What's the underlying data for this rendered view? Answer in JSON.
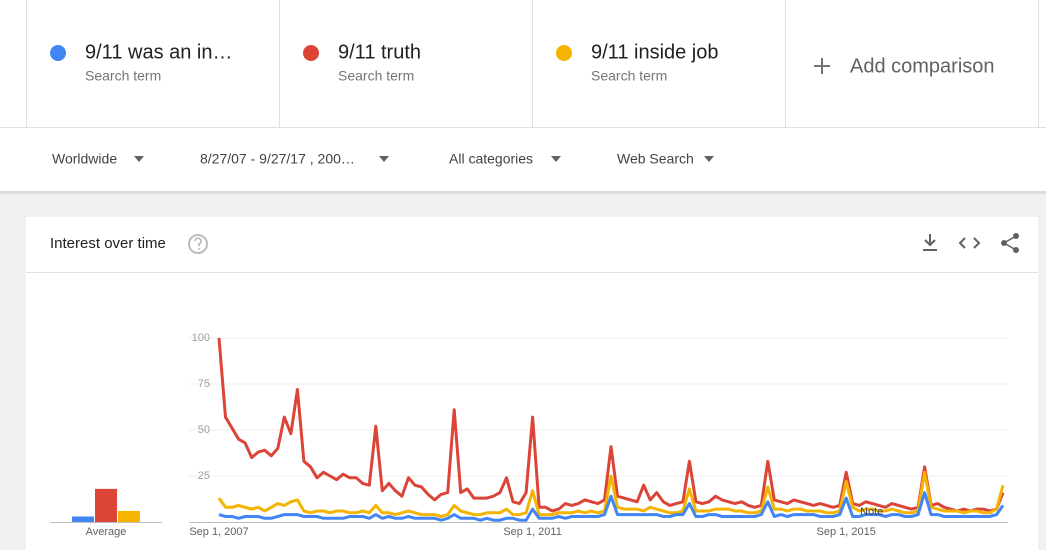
{
  "search_terms": [
    {
      "name": "9/11 was an in…",
      "subtitle": "Search term"
    },
    {
      "name": "9/11 truth",
      "subtitle": "Search term"
    },
    {
      "name": "9/11 inside job",
      "subtitle": "Search term"
    }
  ],
  "add_comparison": "Add comparison",
  "filters": [
    "Worldwide",
    "8/27/07 - 9/27/17 , 200…",
    "All categories",
    "Web Search"
  ],
  "card_title": "Interest over time",
  "chart_data": {
    "type": "line",
    "categories": [
      "Sep 1, 2007",
      null,
      null,
      null,
      null,
      null,
      null,
      null,
      null,
      null,
      null,
      null,
      null,
      null,
      null,
      null,
      null,
      null,
      null,
      null,
      null,
      null,
      null,
      null,
      null,
      null,
      null,
      null,
      null,
      null,
      null,
      null,
      null,
      null,
      null,
      null,
      null,
      null,
      null,
      null,
      null,
      null,
      null,
      null,
      null,
      null,
      null,
      null,
      "Sep 1, 2011",
      null,
      null,
      null,
      null,
      null,
      null,
      null,
      null,
      null,
      null,
      null,
      null,
      null,
      null,
      null,
      null,
      null,
      null,
      null,
      null,
      null,
      null,
      null,
      null,
      null,
      null,
      null,
      null,
      null,
      null,
      null,
      null,
      null,
      null,
      null,
      null,
      null,
      null,
      null,
      null,
      null,
      null,
      null,
      null,
      null,
      null,
      null,
      "Sep 1, 2015",
      null,
      null,
      null,
      null,
      null,
      null,
      null,
      null,
      null,
      null,
      null,
      null,
      null,
      null,
      null,
      null,
      null,
      null,
      null,
      null,
      null,
      null,
      null,
      null
    ],
    "series": [
      {
        "name": "9/11 was an in…",
        "color": "#4285f4",
        "values": [
          4,
          3,
          3,
          2,
          3,
          3,
          3,
          2,
          2,
          3,
          4,
          4,
          4,
          3,
          3,
          3,
          2,
          2,
          2,
          2,
          3,
          3,
          3,
          2,
          4,
          2,
          3,
          2,
          2,
          3,
          2,
          2,
          2,
          2,
          1,
          2,
          4,
          2,
          2,
          2,
          1,
          2,
          1,
          1,
          2,
          2,
          1,
          1,
          7,
          2,
          2,
          2,
          3,
          2,
          3,
          3,
          3,
          3,
          3,
          4,
          14,
          4,
          4,
          4,
          4,
          4,
          4,
          4,
          3,
          3,
          4,
          4,
          10,
          3,
          3,
          4,
          4,
          3,
          3,
          3,
          3,
          3,
          3,
          4,
          11,
          3,
          4,
          3,
          4,
          4,
          4,
          4,
          3,
          3,
          3,
          4,
          13,
          3,
          3,
          4,
          4,
          4,
          3,
          4,
          4,
          3,
          3,
          4,
          16,
          4,
          4,
          3,
          3,
          3,
          3,
          3,
          3,
          3,
          3,
          4,
          9
        ]
      },
      {
        "name": "9/11 truth",
        "color": "#db4437",
        "values": [
          100,
          57,
          51,
          45,
          43,
          35,
          38,
          39,
          36,
          40,
          57,
          48,
          72,
          33,
          30,
          24,
          27,
          25,
          23,
          26,
          24,
          24,
          21,
          20,
          52,
          17,
          21,
          17,
          14,
          24,
          20,
          19,
          15,
          12,
          15,
          16,
          61,
          16,
          18,
          13,
          13,
          13,
          14,
          16,
          24,
          11,
          10,
          16,
          57,
          8,
          8,
          6,
          7,
          10,
          9,
          10,
          12,
          11,
          10,
          12,
          41,
          14,
          13,
          12,
          11,
          20,
          12,
          16,
          11,
          9,
          10,
          11,
          33,
          11,
          10,
          11,
          14,
          12,
          11,
          10,
          11,
          9,
          8,
          9,
          33,
          12,
          11,
          10,
          12,
          11,
          10,
          9,
          10,
          9,
          8,
          9,
          27,
          10,
          9,
          11,
          10,
          9,
          8,
          10,
          9,
          8,
          7,
          8,
          30,
          9,
          10,
          8,
          7,
          6,
          7,
          6,
          7,
          7,
          6,
          7,
          16
        ]
      },
      {
        "name": "9/11 inside job",
        "color": "#f4b400",
        "values": [
          13,
          8,
          8,
          9,
          8,
          7,
          8,
          6,
          8,
          10,
          9,
          11,
          12,
          6,
          5,
          6,
          6,
          5,
          6,
          6,
          5,
          5,
          6,
          5,
          9,
          5,
          5,
          4,
          5,
          6,
          5,
          4,
          4,
          4,
          3,
          4,
          9,
          6,
          5,
          4,
          4,
          5,
          5,
          5,
          7,
          4,
          4,
          5,
          17,
          4,
          4,
          4,
          5,
          5,
          5,
          6,
          5,
          6,
          5,
          6,
          25,
          8,
          7,
          7,
          7,
          6,
          8,
          7,
          6,
          5,
          5,
          6,
          18,
          6,
          6,
          6,
          7,
          7,
          7,
          6,
          6,
          5,
          5,
          6,
          19,
          7,
          7,
          6,
          7,
          7,
          6,
          6,
          6,
          5,
          5,
          6,
          22,
          8,
          6,
          7,
          7,
          6,
          6,
          7,
          6,
          5,
          5,
          6,
          27,
          8,
          7,
          6,
          6,
          6,
          5,
          6,
          6,
          5,
          5,
          7,
          20
        ]
      }
    ],
    "ylim": [
      0,
      100
    ],
    "yticks": [
      25,
      50,
      75,
      100
    ],
    "grid": true,
    "annotation": "Note",
    "average": {
      "label": "Average",
      "values": [
        3,
        18,
        6
      ]
    }
  }
}
